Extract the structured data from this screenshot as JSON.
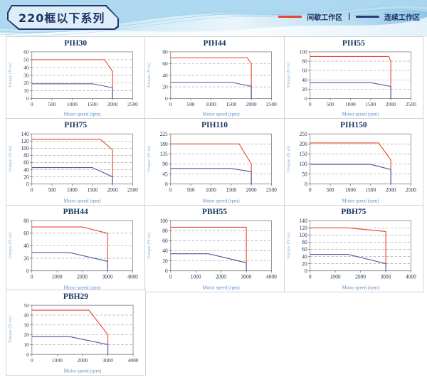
{
  "header": {
    "title": "220框以下系列",
    "legend": {
      "intermittent_label": "间歇工作区",
      "separator": "|",
      "continuous_label": "连续工作区",
      "intermittent_color": "#e8432c",
      "continuous_color": "#2e3f8f"
    }
  },
  "colors": {
    "red_line": "#e8432c",
    "blue_line": "#4d5a9e",
    "chart_title": "#173863",
    "grid_dash": "#a9a9a9",
    "plot_border": "#8f8f8f"
  },
  "chart_data": [
    {
      "type": "line",
      "title": "PIH30",
      "xlabel": "Motor speed (rpm)",
      "ylabel": "Torque (N·m)",
      "xlim": [
        0,
        2500
      ],
      "xstep": 500,
      "ylim": [
        0,
        60
      ],
      "ystep": 10,
      "grid": "dashed-horizontal",
      "series": [
        {
          "name": "间歇工作区",
          "color": "#e8432c",
          "points": [
            [
              0,
              50
            ],
            [
              1800,
              50
            ],
            [
              2000,
              35
            ],
            [
              2000,
              0
            ]
          ]
        },
        {
          "name": "连续工作区",
          "color": "#4d5a9e",
          "points": [
            [
              0,
              19
            ],
            [
              1500,
              19
            ],
            [
              2000,
              14
            ],
            [
              2000,
              0
            ]
          ]
        }
      ]
    },
    {
      "type": "line",
      "title": "PIH44",
      "xlabel": "Motor speed (rpm)",
      "ylabel": "Torque (N·m)",
      "xlim": [
        0,
        2500
      ],
      "xstep": 500,
      "ylim": [
        0,
        80
      ],
      "ystep": 20,
      "grid": "dashed-horizontal",
      "series": [
        {
          "name": "间歇工作区",
          "color": "#e8432c",
          "points": [
            [
              0,
              70
            ],
            [
              1900,
              70
            ],
            [
              2000,
              60
            ],
            [
              2000,
              0
            ]
          ]
        },
        {
          "name": "连续工作区",
          "color": "#4d5a9e",
          "points": [
            [
              0,
              28
            ],
            [
              1500,
              28
            ],
            [
              2000,
              21
            ],
            [
              2000,
              0
            ]
          ]
        }
      ]
    },
    {
      "type": "line",
      "title": "PIH55",
      "xlabel": "Motor speed (rpm)",
      "ylabel": "Torque (N·m)",
      "xlim": [
        0,
        2500
      ],
      "xstep": 500,
      "ylim": [
        0,
        100
      ],
      "ystep": 20,
      "grid": "dashed-horizontal",
      "series": [
        {
          "name": "间歇工作区",
          "color": "#e8432c",
          "points": [
            [
              0,
              90
            ],
            [
              1950,
              90
            ],
            [
              2000,
              80
            ],
            [
              2000,
              0
            ]
          ]
        },
        {
          "name": "连续工作区",
          "color": "#4d5a9e",
          "points": [
            [
              0,
              34
            ],
            [
              1500,
              34
            ],
            [
              2000,
              26
            ],
            [
              2000,
              0
            ]
          ]
        }
      ]
    },
    {
      "type": "line",
      "title": "PIH75",
      "xlabel": "Motor speed (rpm)",
      "ylabel": "Torque (N·m)",
      "xlim": [
        0,
        2500
      ],
      "xstep": 500,
      "ylim": [
        0,
        140
      ],
      "ystep": 20,
      "grid": "dashed-horizontal",
      "series": [
        {
          "name": "间歇工作区",
          "color": "#e8432c",
          "points": [
            [
              0,
              125
            ],
            [
              1700,
              125
            ],
            [
              2000,
              95
            ],
            [
              2000,
              0
            ]
          ]
        },
        {
          "name": "连续工作区",
          "color": "#4d5a9e",
          "points": [
            [
              0,
              46
            ],
            [
              1500,
              46
            ],
            [
              2000,
              20
            ],
            [
              2000,
              0
            ]
          ]
        }
      ]
    },
    {
      "type": "line",
      "title": "PIH110",
      "xlabel": "Motor speed (rpm)",
      "ylabel": "Torque (N·m)",
      "xlim": [
        0,
        2500
      ],
      "xstep": 500,
      "ylim": [
        0,
        225
      ],
      "ystep": 45,
      "grid": "dashed-horizontal",
      "series": [
        {
          "name": "间歇工作区",
          "color": "#e8432c",
          "points": [
            [
              0,
              180
            ],
            [
              1700,
              180
            ],
            [
              2000,
              90
            ],
            [
              2000,
              0
            ]
          ]
        },
        {
          "name": "连续工作区",
          "color": "#4d5a9e",
          "points": [
            [
              0,
              70
            ],
            [
              1500,
              70
            ],
            [
              2000,
              55
            ],
            [
              2000,
              0
            ]
          ]
        }
      ]
    },
    {
      "type": "line",
      "title": "PIH150",
      "xlabel": "Motor speed (rpm)",
      "ylabel": "Torque (N·m)",
      "xlim": [
        0,
        2500
      ],
      "xstep": 500,
      "ylim": [
        0,
        250
      ],
      "ystep": 50,
      "grid": "dashed-horizontal",
      "series": [
        {
          "name": "间歇工作区",
          "color": "#e8432c",
          "points": [
            [
              0,
              205
            ],
            [
              1700,
              205
            ],
            [
              2000,
              120
            ],
            [
              2000,
              0
            ]
          ]
        },
        {
          "name": "连续工作区",
          "color": "#4d5a9e",
          "points": [
            [
              0,
              98
            ],
            [
              1500,
              98
            ],
            [
              2000,
              72
            ],
            [
              2000,
              0
            ]
          ]
        }
      ]
    },
    {
      "type": "line",
      "title": "PBH44",
      "xlabel": "Motor speed (rpm)",
      "ylabel": "Torque (N·m)",
      "xlim": [
        0,
        4000
      ],
      "xstep": 1000,
      "ylim": [
        0,
        80
      ],
      "ystep": 20,
      "grid": "dashed-horizontal",
      "series": [
        {
          "name": "间歇工作区",
          "color": "#e8432c",
          "points": [
            [
              0,
              70
            ],
            [
              2000,
              70
            ],
            [
              3000,
              60
            ],
            [
              3000,
              0
            ]
          ]
        },
        {
          "name": "连续工作区",
          "color": "#4d5a9e",
          "points": [
            [
              0,
              29
            ],
            [
              1500,
              29
            ],
            [
              3000,
              15
            ],
            [
              3000,
              0
            ]
          ]
        }
      ]
    },
    {
      "type": "line",
      "title": "PBH55",
      "xlabel": "Motor speed (rpm)",
      "ylabel": "Torque (N·m)",
      "xlim": [
        0,
        4000
      ],
      "xstep": 1000,
      "ylim": [
        0,
        100
      ],
      "ystep": 20,
      "grid": "dashed-horizontal",
      "series": [
        {
          "name": "间歇工作区",
          "color": "#e8432c",
          "points": [
            [
              0,
              87
            ],
            [
              3000,
              87
            ],
            [
              3000,
              0
            ]
          ]
        },
        {
          "name": "连续工作区",
          "color": "#4d5a9e",
          "points": [
            [
              0,
              34
            ],
            [
              1500,
              34
            ],
            [
              3000,
              16
            ],
            [
              3000,
              0
            ]
          ]
        }
      ]
    },
    {
      "type": "line",
      "title": "PBH75",
      "xlabel": "Motor speed (rpm)",
      "ylabel": "Torque (N·m)",
      "xlim": [
        0,
        4000
      ],
      "xstep": 1000,
      "ylim": [
        0,
        140
      ],
      "ystep": 20,
      "grid": "dashed-horizontal",
      "series": [
        {
          "name": "间歇工作区",
          "color": "#e8432c",
          "points": [
            [
              0,
              120
            ],
            [
              1500,
              120
            ],
            [
              3000,
              110
            ],
            [
              3000,
              0
            ]
          ]
        },
        {
          "name": "连续工作区",
          "color": "#4d5a9e",
          "points": [
            [
              0,
              46
            ],
            [
              1500,
              46
            ],
            [
              3000,
              20
            ],
            [
              3000,
              0
            ]
          ]
        }
      ]
    },
    {
      "type": "line",
      "title": "PBH29",
      "xlabel": "Motor speed (rpm)",
      "ylabel": "Torque (N·m)",
      "xlim": [
        0,
        4000
      ],
      "xstep": 1000,
      "ylim": [
        0,
        50
      ],
      "ystep": 10,
      "grid": "dashed-horizontal",
      "series": [
        {
          "name": "间歇工作区",
          "color": "#e8432c",
          "points": [
            [
              0,
              45
            ],
            [
              2250,
              45
            ],
            [
              3000,
              20
            ],
            [
              3000,
              0
            ]
          ]
        },
        {
          "name": "连续工作区",
          "color": "#4d5a9e",
          "points": [
            [
              0,
              18
            ],
            [
              1500,
              18
            ],
            [
              3000,
              10
            ],
            [
              3000,
              0
            ]
          ]
        }
      ]
    }
  ]
}
